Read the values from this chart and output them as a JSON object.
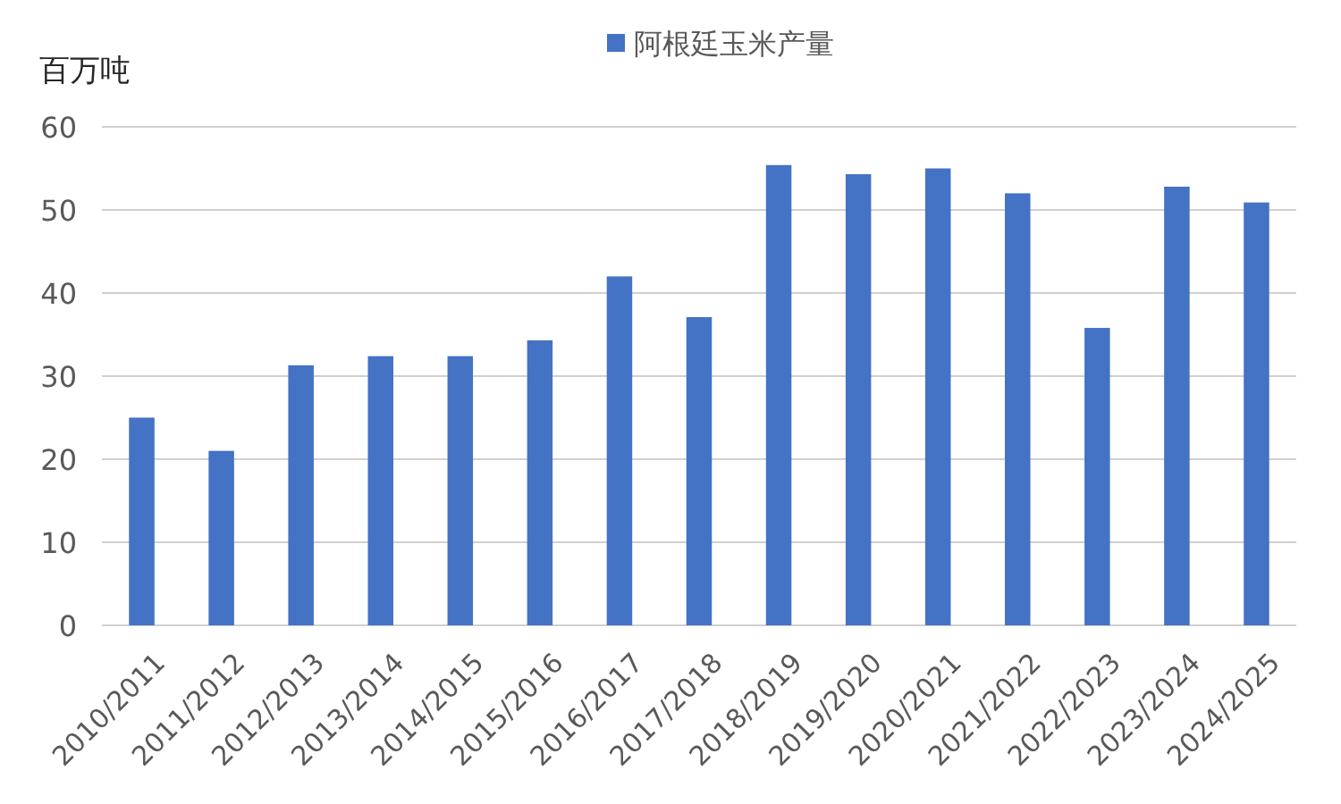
{
  "chart_data": {
    "type": "bar",
    "ylabel": "百万吨",
    "categories": [
      "2010/2011",
      "2011/2012",
      "2012/2013",
      "2013/2014",
      "2014/2015",
      "2015/2016",
      "2016/2017",
      "2017/2018",
      "2018/2019",
      "2019/2020",
      "2020/2021",
      "2021/2022",
      "2022/2023",
      "2023/2024",
      "2024/2025"
    ],
    "series": [
      {
        "name": "阿根廷玉米产量",
        "color": "#4472c4",
        "values": [
          25,
          21,
          31.3,
          32.4,
          32.4,
          34.3,
          42,
          37.1,
          55.4,
          54.3,
          55,
          52,
          35.8,
          52.8,
          50.9
        ]
      }
    ],
    "ylim": [
      0,
      60
    ],
    "yticks": [
      0,
      10,
      20,
      30,
      40,
      50,
      60
    ],
    "grid": "y",
    "legend": "top"
  }
}
